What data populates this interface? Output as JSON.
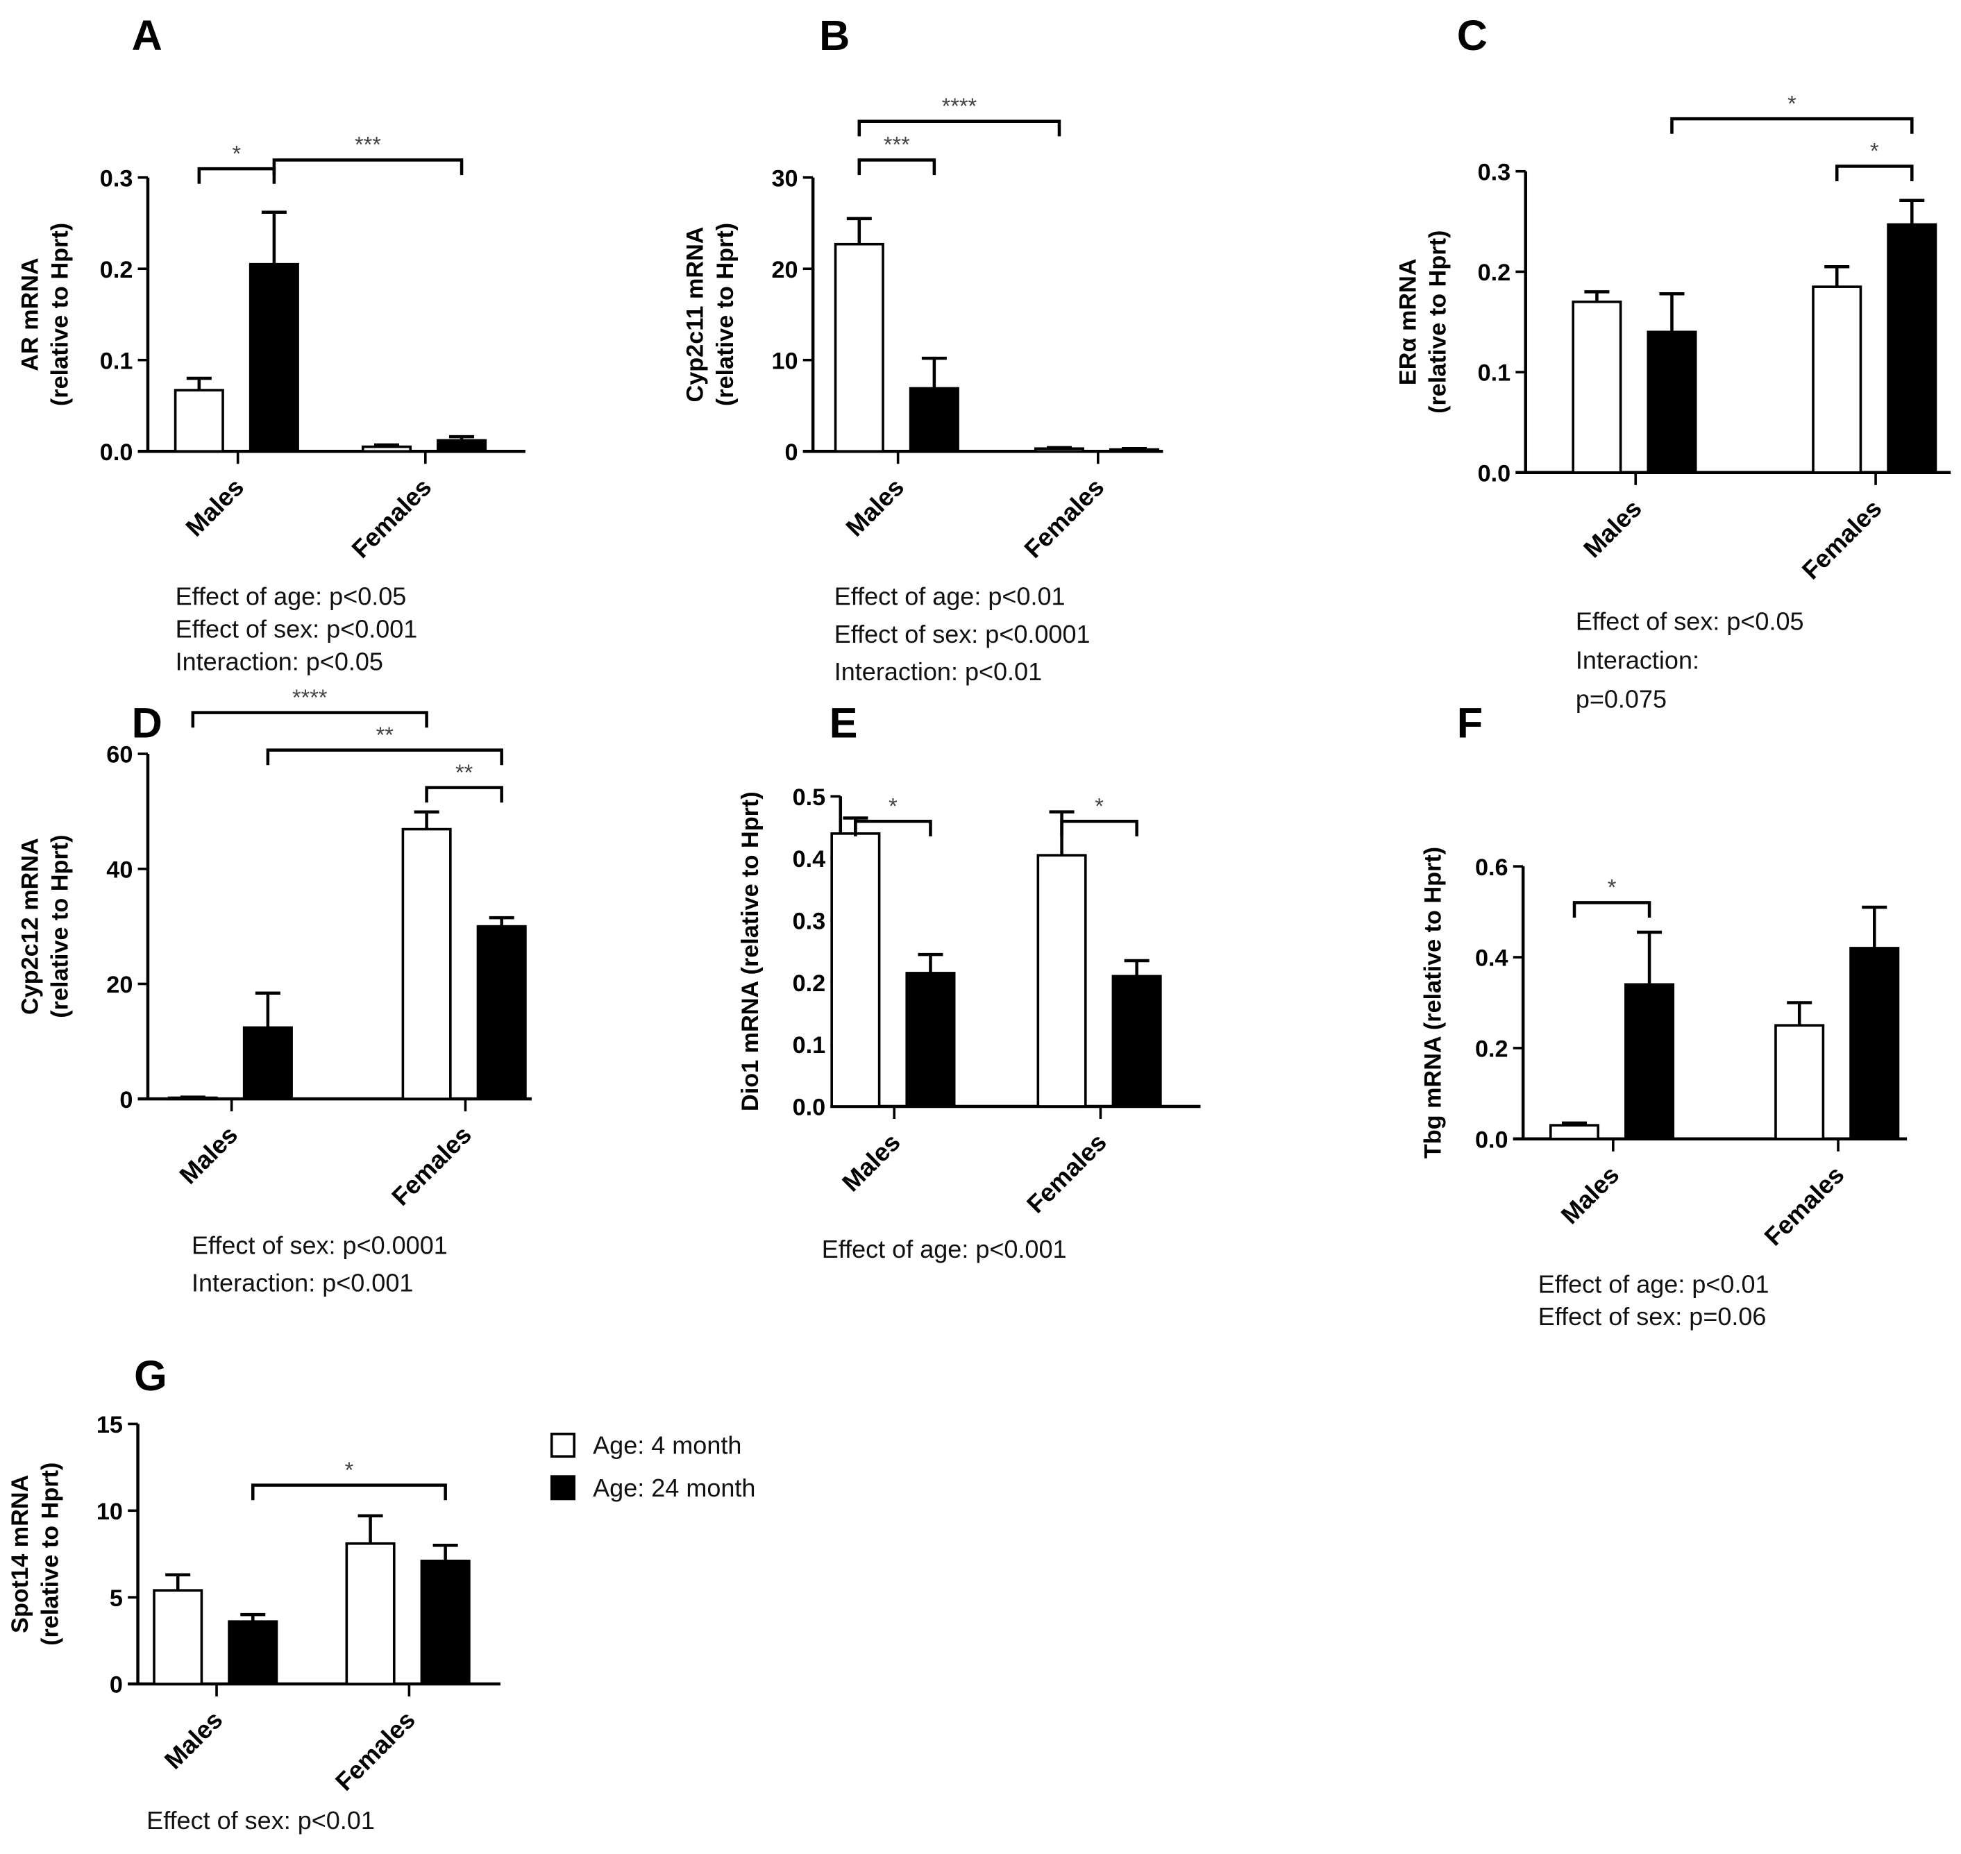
{
  "legend": [
    {
      "label": "Age: 4 month",
      "color": "#ffffff"
    },
    {
      "label": "Age: 24 month",
      "color": "#000000"
    }
  ],
  "chart_data": [
    {
      "panel": "A",
      "type": "bar",
      "ylabel": [
        "AR mRNA",
        "(relative to Hprt)"
      ],
      "ylim": [
        0,
        0.3
      ],
      "yticks": [
        "0.0",
        "0.1",
        "0.2",
        "0.3"
      ],
      "categories": [
        "Males",
        "Females"
      ],
      "series": [
        {
          "name": "Age: 4 month",
          "values": [
            0.067,
            0.005
          ],
          "errors": [
            0.013,
            0.002
          ]
        },
        {
          "name": "Age: 24 month",
          "values": [
            0.205,
            0.012
          ],
          "errors": [
            0.057,
            0.004
          ]
        }
      ],
      "significance": [
        {
          "from": "Males 4 month",
          "to": "Males 24 month",
          "label": "*"
        },
        {
          "from": "Males 24 month",
          "to": "Females 24 month",
          "label": "***"
        }
      ],
      "notes": [
        "Effect of age: p<0.05",
        "Effect of sex: p<0.001",
        "Interaction: p<0.05"
      ]
    },
    {
      "panel": "B",
      "type": "bar",
      "ylabel": [
        "Cyp2c11 mRNA",
        "(relative to Hprt)"
      ],
      "ylim": [
        0,
        30
      ],
      "yticks": [
        "0",
        "10",
        "20",
        "30"
      ],
      "categories": [
        "Males",
        "Females"
      ],
      "series": [
        {
          "name": "Age: 4 month",
          "values": [
            22.7,
            0.3
          ],
          "errors": [
            2.8,
            0.1
          ]
        },
        {
          "name": "Age: 24 month",
          "values": [
            6.9,
            0.2
          ],
          "errors": [
            3.3,
            0.1
          ]
        }
      ],
      "significance": [
        {
          "from": "Males 4 month",
          "to": "Males 24 month",
          "label": "***"
        },
        {
          "from": "Males 4 month",
          "to": "Females 4 month",
          "label": "****"
        }
      ],
      "notes": [
        "Effect of age: p<0.01",
        "Effect of sex: p<0.0001",
        "Interaction: p<0.01"
      ]
    },
    {
      "panel": "C",
      "type": "bar",
      "ylabel": [
        "ERα mRNA",
        "(relative to Hprt)"
      ],
      "ylim": [
        0,
        0.3
      ],
      "yticks": [
        "0.0",
        "0.1",
        "0.2",
        "0.3"
      ],
      "categories": [
        "Males",
        "Females"
      ],
      "series": [
        {
          "name": "Age: 4 month",
          "values": [
            0.17,
            0.185
          ],
          "errors": [
            0.01,
            0.02
          ]
        },
        {
          "name": "Age: 24 month",
          "values": [
            0.14,
            0.247
          ],
          "errors": [
            0.038,
            0.024
          ]
        }
      ],
      "significance": [
        {
          "from": "Females 4 month",
          "to": "Females 24 month",
          "label": "*"
        },
        {
          "from": "Males 24 month",
          "to": "Females 24 month",
          "label": "*"
        }
      ],
      "notes": [
        "Effect of sex: p<0.05",
        "Interaction:",
        "p=0.075"
      ]
    },
    {
      "panel": "D",
      "type": "bar",
      "ylabel": [
        "Cyp2c12 mRNA",
        "(relative to Hprt)"
      ],
      "ylim": [
        0,
        60
      ],
      "yticks": [
        "0",
        "20",
        "40",
        "60"
      ],
      "categories": [
        "Males",
        "Females"
      ],
      "series": [
        {
          "name": "Age: 4 month",
          "values": [
            0.2,
            46.9
          ],
          "errors": [
            0.1,
            3.0
          ]
        },
        {
          "name": "Age: 24 month",
          "values": [
            12.4,
            30.0
          ],
          "errors": [
            6.0,
            1.5
          ]
        }
      ],
      "significance": [
        {
          "from": "Females 4 month",
          "to": "Females 24 month",
          "label": "**"
        },
        {
          "from": "Males 24 month",
          "to": "Females 24 month",
          "label": "**"
        },
        {
          "from": "Males 4 month",
          "to": "Females 4 month",
          "label": "****"
        }
      ],
      "notes": [
        "Effect of sex: p<0.0001",
        "Interaction: p<0.001"
      ]
    },
    {
      "panel": "E",
      "type": "bar",
      "ylabel": [
        "Dio1 mRNA (relative to Hprt)"
      ],
      "ylim": [
        0,
        0.5
      ],
      "yticks": [
        "0.0",
        "0.1",
        "0.2",
        "0.3",
        "0.4",
        "0.5"
      ],
      "categories": [
        "Males",
        "Females"
      ],
      "series": [
        {
          "name": "Age: 4 month",
          "values": [
            0.44,
            0.405
          ],
          "errors": [
            0.025,
            0.07
          ]
        },
        {
          "name": "Age: 24 month",
          "values": [
            0.215,
            0.21
          ],
          "errors": [
            0.03,
            0.025
          ]
        }
      ],
      "significance": [
        {
          "from": "Males 4 month",
          "to": "Males 24 month",
          "label": "*"
        },
        {
          "from": "Females 4 month",
          "to": "Females 24 month",
          "label": "*"
        }
      ],
      "notes": [
        "Effect of age: p<0.001"
      ]
    },
    {
      "panel": "F",
      "type": "bar",
      "ylabel": [
        "Tbg mRNA (relative to Hprt)"
      ],
      "ylim": [
        0,
        0.6
      ],
      "yticks": [
        "0.0",
        "0.2",
        "0.4",
        "0.6"
      ],
      "categories": [
        "Males",
        "Females"
      ],
      "series": [
        {
          "name": "Age: 4 month",
          "values": [
            0.03,
            0.25
          ],
          "errors": [
            0.005,
            0.05
          ]
        },
        {
          "name": "Age: 24 month",
          "values": [
            0.34,
            0.42
          ],
          "errors": [
            0.115,
            0.09
          ]
        }
      ],
      "significance": [
        {
          "from": "Males 4 month",
          "to": "Males 24 month",
          "label": "*"
        }
      ],
      "notes": [
        "Effect of age: p<0.01",
        "Effect of sex: p=0.06"
      ]
    },
    {
      "panel": "G",
      "type": "bar",
      "ylabel": [
        "Spot14 mRNA",
        "(relative to Hprt)"
      ],
      "ylim": [
        0,
        15
      ],
      "yticks": [
        "0",
        "5",
        "10",
        "15"
      ],
      "categories": [
        "Males",
        "Females"
      ],
      "series": [
        {
          "name": "Age: 4 month",
          "values": [
            5.4,
            8.1
          ],
          "errors": [
            0.9,
            1.6
          ]
        },
        {
          "name": "Age: 24 month",
          "values": [
            3.6,
            7.1
          ],
          "errors": [
            0.4,
            0.9
          ]
        }
      ],
      "significance": [
        {
          "from": "Males 24 month",
          "to": "Females 24 month",
          "label": "*"
        }
      ],
      "notes": [
        "Effect of sex: p<0.01"
      ]
    }
  ]
}
